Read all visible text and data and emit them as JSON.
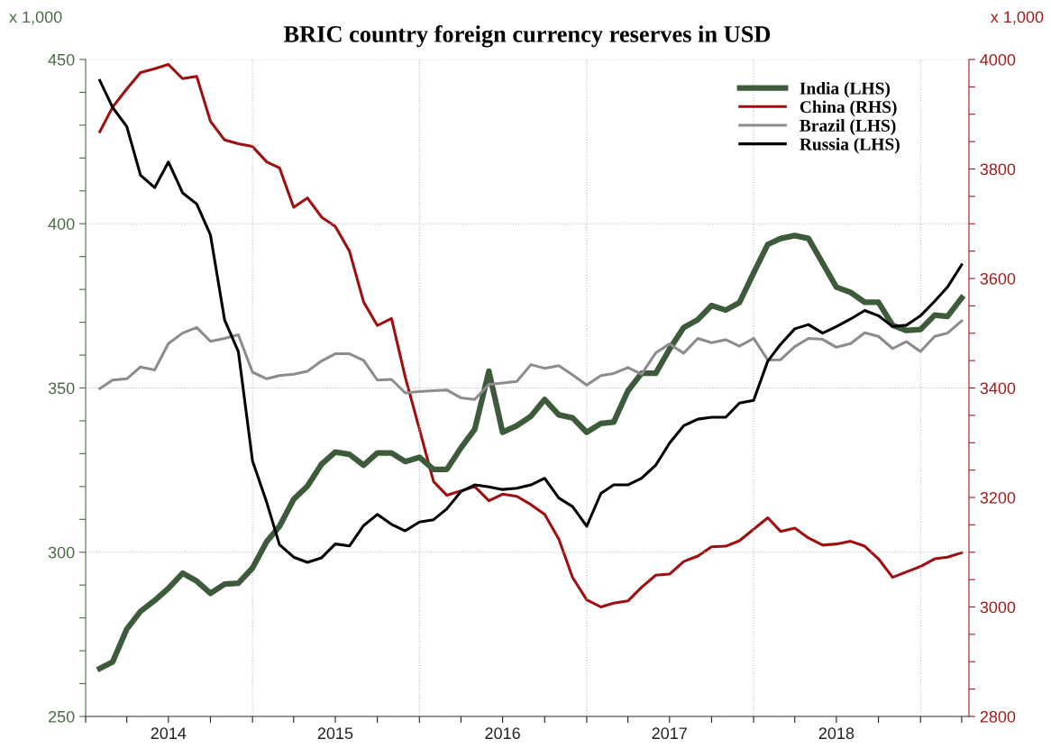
{
  "chart_data": {
    "type": "line",
    "title": "BRIC country foreign currency reserves in USD",
    "annotations": [
      "x 1,000",
      "x 1,000"
    ],
    "x": [
      "2014-02",
      "2014-03",
      "2014-04",
      "2014-05",
      "2014-06",
      "2014-07",
      "2014-08",
      "2014-09",
      "2014-10",
      "2014-11",
      "2014-12",
      "2015-01",
      "2015-02",
      "2015-03",
      "2015-04",
      "2015-05",
      "2015-06",
      "2015-07",
      "2015-08",
      "2015-09",
      "2015-10",
      "2015-11",
      "2015-12",
      "2016-01",
      "2016-02",
      "2016-03",
      "2016-04",
      "2016-05",
      "2016-06",
      "2016-07",
      "2016-08",
      "2016-09",
      "2016-10",
      "2016-11",
      "2016-12",
      "2017-01",
      "2017-02",
      "2017-03",
      "2017-04",
      "2017-05",
      "2017-06",
      "2017-07",
      "2017-08",
      "2017-09",
      "2017-10",
      "2017-11",
      "2017-12",
      "2018-01",
      "2018-02",
      "2018-03",
      "2018-04",
      "2018-05",
      "2018-06",
      "2018-07",
      "2018-08",
      "2018-09",
      "2018-10",
      "2018-11",
      "2018-12",
      "2019-01",
      "2019-02",
      "2019-03",
      "2019-04"
    ],
    "series": [
      {
        "name": "India (LHS)",
        "color": "#3d5a3a",
        "values": [
          264.6,
          266.6,
          276.6,
          282,
          285.3,
          289,
          293.6,
          291.2,
          287.5,
          290.3,
          290.6,
          295.2,
          303.2,
          307.9,
          316.1,
          320.1,
          326.8,
          330.5,
          329.8,
          326.5,
          330.2,
          330.2,
          327.6,
          328.9,
          325.2,
          325.2,
          331.8,
          337.4,
          355.1,
          336.5,
          338.5,
          341.4,
          346.5,
          341.8,
          340.9,
          336.5,
          339.2,
          339.6,
          349.1,
          354.5,
          354.5,
          361.8,
          368.4,
          370.8,
          375.1,
          373.7,
          376,
          385,
          393.7,
          395.5,
          396.4,
          395.5,
          388,
          380.7,
          379.1,
          376.1,
          376.1,
          369.1,
          367.5,
          367.8,
          372.2,
          371.8,
          377.4
        ]
      },
      {
        "name": "China (RHS)",
        "color": "#a00f0f",
        "axis": "y2",
        "values": [
          3868,
          3913,
          3946,
          3976,
          3983,
          3991,
          3965,
          3969,
          3887,
          3853,
          3846,
          3841,
          3813,
          3802,
          3730,
          3747,
          3712,
          3695,
          3650,
          3557,
          3514,
          3527,
          3420,
          3325,
          3229,
          3204,
          3212,
          3220,
          3194,
          3206,
          3202,
          3187,
          3169,
          3124,
          3054,
          3013,
          3000,
          3007,
          3011,
          3036,
          3058,
          3060,
          3083,
          3093,
          3110,
          3111,
          3121,
          3142,
          3163,
          3138,
          3144,
          3126,
          3113,
          3115,
          3120,
          3111,
          3088,
          3054,
          3064,
          3074,
          3088,
          3091,
          3099
        ]
      },
      {
        "name": "Brazil (LHS)",
        "color": "#8c8c8c",
        "values": [
          349.8,
          352.4,
          352.8,
          356.4,
          355.5,
          363.5,
          366.7,
          368.4,
          364.2,
          365.1,
          366.2,
          354.8,
          352.8,
          353.8,
          354.2,
          355.1,
          358.2,
          360.4,
          360.4,
          358.4,
          352.4,
          352.6,
          348.5,
          348.9,
          349.2,
          349.4,
          347,
          346.5,
          351.1,
          351.5,
          352,
          357.1,
          356,
          356.8,
          354,
          350.9,
          353.8,
          354.4,
          356.2,
          354.2,
          360.7,
          363.4,
          360.6,
          365.1,
          363.8,
          364.7,
          362.7,
          365.1,
          358.5,
          358.6,
          362.6,
          365.1,
          364.8,
          362.4,
          363.5,
          366.8,
          365.7,
          362,
          364.1,
          361.1,
          365.7,
          366.7,
          370.4
        ]
      },
      {
        "name": "Russia (LHS)",
        "color": "#000000",
        "values": [
          443.6,
          435.4,
          429.6,
          414.8,
          411,
          418.8,
          409.4,
          406,
          396.6,
          370.7,
          361.1,
          327.8,
          315.2,
          302.3,
          298.5,
          296.9,
          298.3,
          302.5,
          301.9,
          308.1,
          311.5,
          308.5,
          306.5,
          309.2,
          309.9,
          313.2,
          318.5,
          320.5,
          319.9,
          319.1,
          319.5,
          320.5,
          322.5,
          316.5,
          313.9,
          307.9,
          317.9,
          320.5,
          320.5,
          322.5,
          326.5,
          333.2,
          338.5,
          340.5,
          341.1,
          341.1,
          345.4,
          346.2,
          358.2,
          363.3,
          368,
          369.3,
          366.7,
          368.7,
          371,
          373.6,
          372,
          368.7,
          369.1,
          372,
          376.4,
          380.7,
          387.5
        ]
      }
    ],
    "xlim": [
      "2014-01-01",
      "2019-04-17"
    ],
    "xticks": [
      {
        "value": "2014-01-01",
        "label": null
      },
      {
        "value": "2014-04-01",
        "label": null
      },
      {
        "value": "2014-07-01",
        "label": "2014"
      },
      {
        "value": "2014-10-01",
        "label": null
      },
      {
        "value": "2015-01-01",
        "label": null
      },
      {
        "value": "2015-04-01",
        "label": null
      },
      {
        "value": "2015-07-01",
        "label": "2015"
      },
      {
        "value": "2015-10-01",
        "label": null
      },
      {
        "value": "2016-01-01",
        "label": null
      },
      {
        "value": "2016-04-01",
        "label": null
      },
      {
        "value": "2016-07-01",
        "label": "2016"
      },
      {
        "value": "2016-10-01",
        "label": null
      },
      {
        "value": "2017-01-01",
        "label": null
      },
      {
        "value": "2017-04-01",
        "label": null
      },
      {
        "value": "2017-07-01",
        "label": "2017"
      },
      {
        "value": "2017-10-01",
        "label": null
      },
      {
        "value": "2018-01-01",
        "label": null
      },
      {
        "value": "2018-04-01",
        "label": null
      },
      {
        "value": "2018-07-01",
        "label": "2018"
      },
      {
        "value": "2018-10-01",
        "label": null
      },
      {
        "value": "2019-01-01",
        "label": null
      },
      {
        "value": "2019-04-01",
        "label": null
      }
    ],
    "ylim": [
      250,
      450
    ],
    "yticks": [
      250,
      {
        "value": 260,
        "label": null
      },
      {
        "value": 270,
        "label": null
      },
      {
        "value": 280,
        "label": null
      },
      {
        "value": 290,
        "label": null
      },
      300,
      {
        "value": 310,
        "label": null
      },
      {
        "value": 320,
        "label": null
      },
      {
        "value": 330,
        "label": null
      },
      {
        "value": 340,
        "label": null
      },
      350,
      {
        "value": 360,
        "label": null
      },
      {
        "value": 370,
        "label": null
      },
      {
        "value": 380,
        "label": null
      },
      {
        "value": 390,
        "label": null
      },
      400,
      {
        "value": 410,
        "label": null
      },
      {
        "value": 420,
        "label": null
      },
      {
        "value": 430,
        "label": null
      },
      {
        "value": 440,
        "label": null
      },
      450
    ],
    "y2lim": [
      2800,
      4000
    ],
    "y2ticks": [
      2800,
      {
        "value": 2850,
        "label": null
      },
      {
        "value": 2900,
        "label": null
      },
      {
        "value": 2950,
        "label": null
      },
      3000,
      {
        "value": 3050,
        "label": null
      },
      {
        "value": 3100,
        "label": null
      },
      {
        "value": 3150,
        "label": null
      },
      3200,
      {
        "value": 3250,
        "label": null
      },
      {
        "value": 3300,
        "label": null
      },
      {
        "value": 3350,
        "label": null
      },
      3400,
      {
        "value": 3450,
        "label": null
      },
      {
        "value": 3500,
        "label": null
      },
      {
        "value": 3550,
        "label": null
      },
      3600,
      {
        "value": 3650,
        "label": null
      },
      {
        "value": 3700,
        "label": null
      },
      {
        "value": 3750,
        "label": null
      },
      3800,
      {
        "value": 3850,
        "label": null
      },
      {
        "value": 3900,
        "label": null
      },
      {
        "value": 3950,
        "label": null
      },
      4000
    ],
    "grid": true,
    "legend": "top right",
    "marker": "none",
    "line_style": "solid"
  }
}
